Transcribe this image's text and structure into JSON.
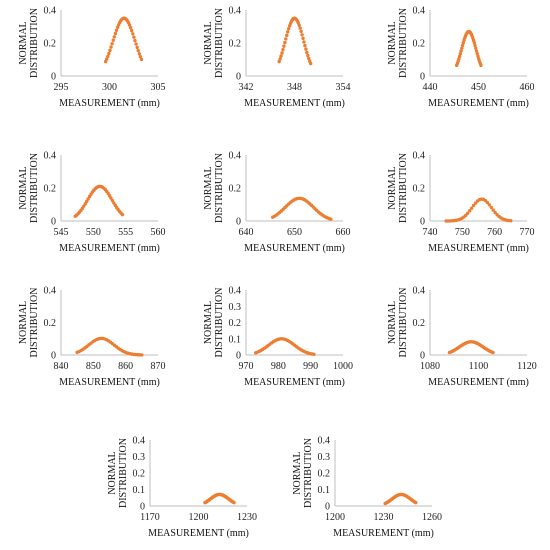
{
  "chart_data": [
    {
      "type": "scatter",
      "xlabel": "MEASUREMENT (mm)",
      "ylabel": [
        "NORMAL",
        "DISTRIBUTION"
      ],
      "xlim": [
        295,
        305
      ],
      "xticks": [
        295,
        300,
        305
      ],
      "ylim": [
        0,
        0.4
      ],
      "yticks": [
        0,
        0.2,
        0.4
      ],
      "mean": 301.5,
      "sd": 1.14,
      "xrange": [
        299.6,
        303.3
      ]
    },
    {
      "type": "scatter",
      "xlabel": "MEASUREMENT (mm)",
      "ylabel": [
        "NORMAL",
        "DISTRIBUTION"
      ],
      "xlim": [
        342,
        354
      ],
      "xticks": [
        342,
        348,
        354
      ],
      "ylim": [
        0,
        0.4
      ],
      "yticks": [
        0,
        0.2,
        0.4
      ],
      "mean": 348,
      "sd": 1.14,
      "xrange": [
        346.1,
        350
      ]
    },
    {
      "type": "scatter",
      "xlabel": "MEASUREMENT (mm)",
      "ylabel": [
        "NORMAL",
        "DISTRIBUTION"
      ],
      "xlim": [
        440,
        460
      ],
      "xticks": [
        440,
        450,
        460
      ],
      "ylim": [
        0,
        0.4
      ],
      "yticks": [
        0,
        0.2,
        0.4
      ],
      "mean": 448,
      "sd": 1.48,
      "xrange": [
        445.5,
        450.5
      ]
    },
    {
      "type": "scatter",
      "xlabel": "MEASUREMENT (mm)",
      "ylabel": [
        "NORMAL",
        "DISTRIBUTION"
      ],
      "xlim": [
        545,
        560
      ],
      "xticks": [
        545,
        550,
        555,
        560
      ],
      "ylim": [
        0,
        0.4
      ],
      "yticks": [
        0,
        0.2,
        0.4
      ],
      "mean": 551,
      "sd": 1.9,
      "xrange": [
        547.2,
        554.5
      ]
    },
    {
      "type": "scatter",
      "xlabel": "MEASUREMENT (mm)",
      "ylabel": [
        "NORMAL",
        "DISTRIBUTION"
      ],
      "xlim": [
        640,
        660
      ],
      "xticks": [
        640,
        650,
        660
      ],
      "ylim": [
        0,
        0.4
      ],
      "yticks": [
        0,
        0.2,
        0.4
      ],
      "mean": 651,
      "sd": 2.9,
      "xrange": [
        645.5,
        657.5
      ]
    },
    {
      "type": "scatter",
      "xlabel": "MEASUREMENT (mm)",
      "ylabel": [
        "NORMAL",
        "DISTRIBUTION"
      ],
      "xlim": [
        740,
        770
      ],
      "xticks": [
        740,
        750,
        760,
        770
      ],
      "ylim": [
        0,
        0.4
      ],
      "yticks": [
        0,
        0.2,
        0.4
      ],
      "mean": 756,
      "sd": 3.0,
      "xrange": [
        745,
        765
      ]
    },
    {
      "type": "scatter",
      "xlabel": "MEASUREMENT (mm)",
      "ylabel": [
        "NORMAL",
        "DISTRIBUTION"
      ],
      "xlim": [
        840,
        870
      ],
      "xticks": [
        840,
        850,
        860,
        870
      ],
      "ylim": [
        0,
        0.4
      ],
      "yticks": [
        0,
        0.2,
        0.4
      ],
      "mean": 852.5,
      "sd": 3.9,
      "xrange": [
        845,
        865
      ]
    },
    {
      "type": "scatter",
      "xlabel": "MEASUREMENT (mm)",
      "ylabel": [
        "NORMAL",
        "DISTRIBUTION"
      ],
      "xlim": [
        970,
        1000
      ],
      "xticks": [
        970,
        980,
        990,
        1000
      ],
      "ylim": [
        0,
        0.4
      ],
      "yticks": [
        0,
        0.1,
        0.2,
        0.3,
        0.4
      ],
      "mean": 981,
      "sd": 4.0,
      "xrange": [
        973,
        991
      ]
    },
    {
      "type": "scatter",
      "xlabel": "MEASUREMENT (mm)",
      "ylabel": [
        "NORMAL",
        "DISTRIBUTION"
      ],
      "xlim": [
        1080,
        1120
      ],
      "xticks": [
        1080,
        1100,
        1120
      ],
      "ylim": [
        0,
        0.4
      ],
      "yticks": [
        0,
        0.2,
        0.4
      ],
      "mean": 1097,
      "sd": 4.9,
      "xrange": [
        1088,
        1106
      ]
    },
    {
      "type": "scatter",
      "xlabel": "MEASUREMENT (mm)",
      "ylabel": [
        "NORMAL",
        "DISTRIBUTION"
      ],
      "xlim": [
        1170,
        1230
      ],
      "xticks": [
        1170,
        1200,
        1230
      ],
      "ylim": [
        0,
        0.4
      ],
      "yticks": [
        0,
        0.1,
        0.2,
        0.3,
        0.4
      ],
      "mean": 1213,
      "sd": 5.7,
      "xrange": [
        1204,
        1222
      ]
    },
    {
      "type": "scatter",
      "xlabel": "MEASUREMENT (mm)",
      "ylabel": [
        "NORMAL",
        "DISTRIBUTION"
      ],
      "xlim": [
        1200,
        1260
      ],
      "xticks": [
        1200,
        1230,
        1260
      ],
      "ylim": [
        0,
        0.4
      ],
      "yticks": [
        0,
        0.1,
        0.2,
        0.3,
        0.4
      ],
      "mean": 1241,
      "sd": 5.7,
      "xrange": [
        1231,
        1250
      ]
    }
  ]
}
